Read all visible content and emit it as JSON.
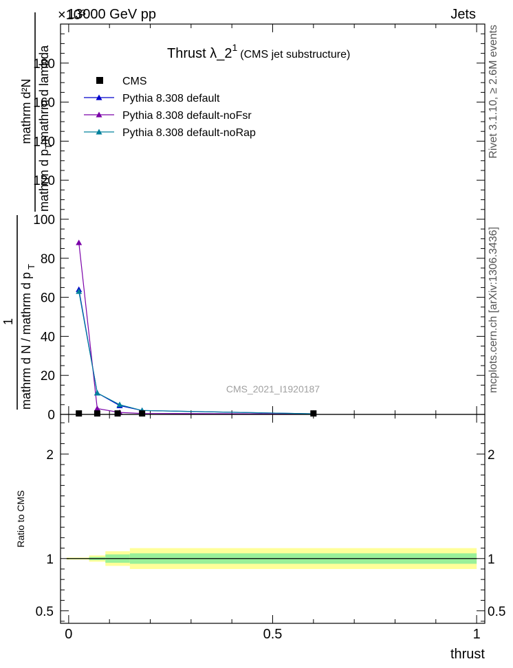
{
  "header": {
    "left": "13000 GeV pp",
    "right": "Jets",
    "exponent": "×10³"
  },
  "side_text": {
    "top": "Rivet 3.1.10, ≥ 2.6M events",
    "bottom": "mcplots.cern.ch [arXiv:1306.3436]"
  },
  "chart_data": {
    "type": "line",
    "title_main": "Thrust  λ_2",
    "title_sup": "1",
    "title_note": "(CMS jet substructure)",
    "watermark": "CMS_2021_I1920187",
    "xlabel": "thrust",
    "ylabel_top": {
      "numerator": "mathrm d²N",
      "denominator": "mathrm d p",
      "denominator_sub": "T",
      "denominator_tail": "mathrm d lambda"
    },
    "ylabel_bottom": {
      "numerator": "1",
      "denominator": "mathrm d N / mathrm d p",
      "denominator_sub": "T"
    },
    "xlim": [
      -0.02,
      1.02
    ],
    "ylim": [
      0,
      200
    ],
    "y_unit_multiplier": 1000,
    "x_ticks": [
      "0",
      "0.5",
      "1"
    ],
    "x_tick_values": [
      0,
      0.5,
      1
    ],
    "y_ticks": [
      "0",
      "20",
      "40",
      "60",
      "80",
      "100",
      "120",
      "140",
      "160",
      "180"
    ],
    "y_tick_values": [
      0,
      20,
      40,
      60,
      80,
      100,
      120,
      140,
      160,
      180
    ],
    "legend_position": "top-left",
    "series": [
      {
        "name": "CMS",
        "color": "#000000",
        "marker": "square",
        "x": [
          0.025,
          0.07,
          0.12,
          0.18,
          0.6
        ],
        "y": [
          0.5,
          0.5,
          0.5,
          0.5,
          0.5
        ]
      },
      {
        "name": "Pythia 8.308 default",
        "color": "#0000cc",
        "marker": "triangle",
        "x": [
          0.025,
          0.07,
          0.125,
          0.18,
          0.6
        ],
        "y": [
          64,
          11,
          4.5,
          2,
          0.3
        ]
      },
      {
        "name": "Pythia 8.308 default-noFsr",
        "color": "#7a00a8",
        "marker": "triangle",
        "x": [
          0.025,
          0.07,
          0.125,
          0.18,
          0.6
        ],
        "y": [
          88,
          3,
          1,
          0.5,
          0.2
        ]
      },
      {
        "name": "Pythia 8.308 default-noRap",
        "color": "#00809c",
        "marker": "triangle",
        "x": [
          0.025,
          0.07,
          0.125,
          0.18,
          0.6
        ],
        "y": [
          63,
          11,
          5,
          2,
          0.3
        ]
      }
    ],
    "ratio": {
      "ylabel": "Ratio to CMS",
      "ylim": [
        0.38,
        2.38
      ],
      "y_ticks": [
        "0.5",
        "1",
        "2"
      ],
      "y_tick_values": [
        0.5,
        1,
        2
      ],
      "bands": [
        {
          "x0": -0.005,
          "x1": 0.05,
          "lo_outer": 0.99,
          "hi_outer": 1.01,
          "lo_inner": 0.995,
          "hi_inner": 1.005
        },
        {
          "x0": 0.05,
          "x1": 0.09,
          "lo_outer": 0.97,
          "hi_outer": 1.03,
          "lo_inner": 0.985,
          "hi_inner": 1.015
        },
        {
          "x0": 0.09,
          "x1": 0.15,
          "lo_outer": 0.93,
          "hi_outer": 1.07,
          "lo_inner": 0.96,
          "hi_inner": 1.04
        },
        {
          "x0": 0.15,
          "x1": 1.0,
          "lo_outer": 0.9,
          "hi_outer": 1.1,
          "lo_inner": 0.95,
          "hi_inner": 1.05
        }
      ],
      "band_colors": {
        "outer": "#ffff99",
        "inner": "#99f099"
      }
    }
  }
}
